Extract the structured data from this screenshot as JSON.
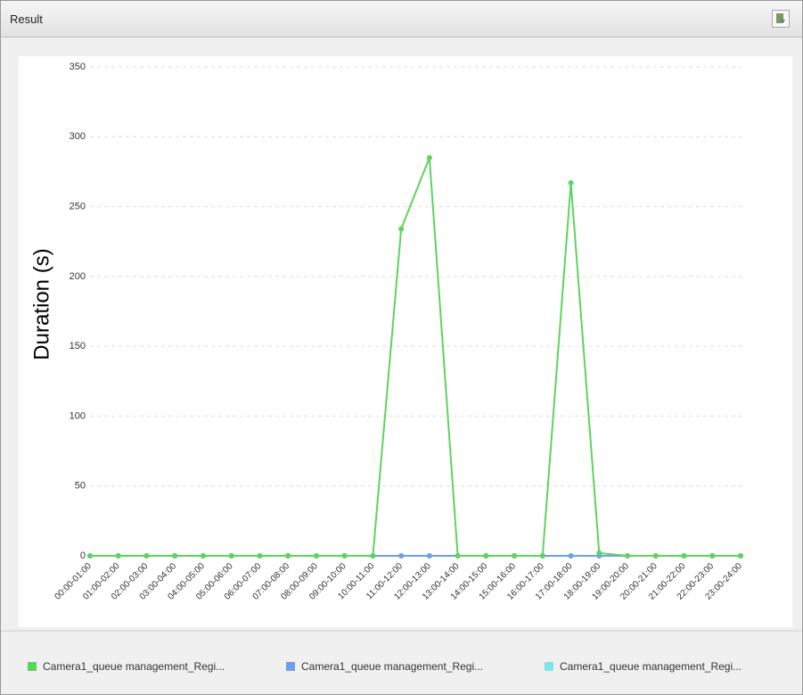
{
  "panel": {
    "title": "Result"
  },
  "chart_data": {
    "type": "line",
    "y_label": "Duration (s)",
    "categories": [
      "00:00-01:00",
      "01:00-02:00",
      "02:00-03:00",
      "03:00-04:00",
      "04:00-05:00",
      "05:00-06:00",
      "06:00-07:00",
      "07:00-08:00",
      "08:00-09:00",
      "09:00-10:00",
      "10:00-11:00",
      "11:00-12:00",
      "12:00-13:00",
      "13:00-14:00",
      "14:00-15:00",
      "15:00-16:00",
      "16:00-17:00",
      "17:00-18:00",
      "18:00-19:00",
      "19:00-20:00",
      "20:00-21:00",
      "21:00-22:00",
      "22:00-23:00",
      "23:00-24:00"
    ],
    "series": [
      {
        "name": "Camera1_queue management_Regi...",
        "color": "#5fd35f",
        "values": [
          0,
          0,
          0,
          0,
          0,
          0,
          0,
          0,
          0,
          0,
          0,
          234,
          285,
          0,
          0,
          0,
          0,
          267,
          2,
          0,
          0,
          0,
          0,
          0
        ]
      },
      {
        "name": "Camera1_queue management_Regi...",
        "color": "#6f9fe8",
        "values": [
          0,
          0,
          0,
          0,
          0,
          0,
          0,
          0,
          0,
          0,
          0,
          0,
          0,
          0,
          0,
          0,
          0,
          0,
          0,
          0,
          0,
          0,
          0,
          0
        ]
      },
      {
        "name": "Camera1_queue management_Regi...",
        "color": "#7fe3e8",
        "values": [
          0,
          0,
          0,
          0,
          0,
          0,
          0,
          0,
          0,
          0,
          0,
          0,
          0,
          0,
          0,
          0,
          0,
          0,
          0,
          0,
          0,
          0,
          0,
          0
        ]
      }
    ],
    "ylim": [
      0,
      350
    ],
    "yticks": [
      0,
      50,
      100,
      150,
      200,
      250,
      300,
      350
    ],
    "grid": true
  }
}
